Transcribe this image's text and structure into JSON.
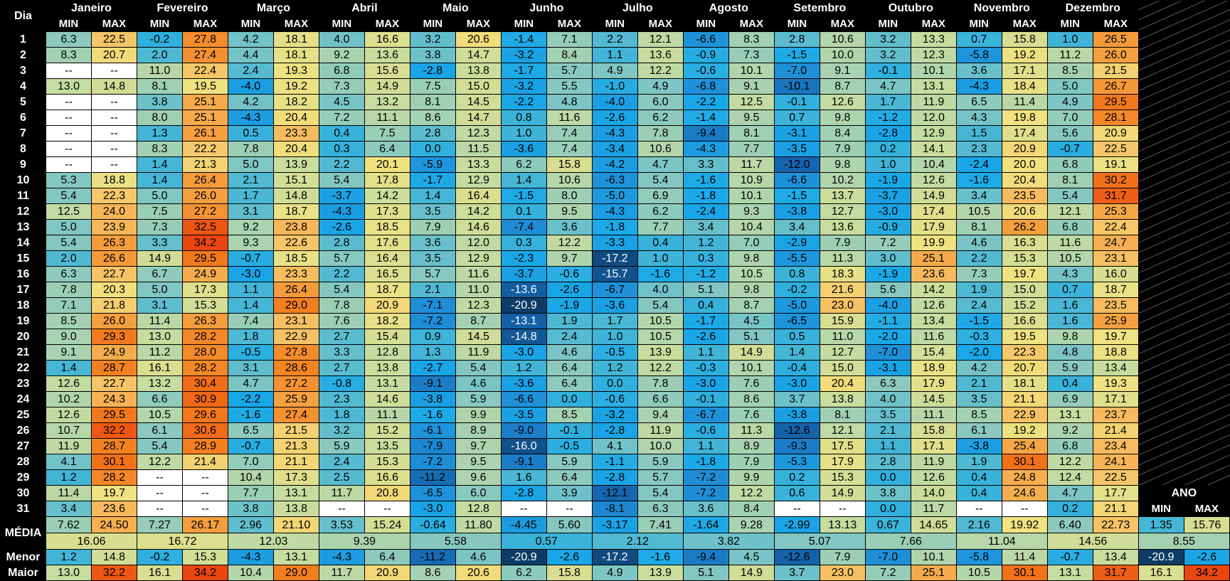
{
  "header": {
    "dia": "Dia",
    "min": "MIN",
    "max": "MAX",
    "ano": "ANO"
  },
  "months": [
    "Janeiro",
    "Fevereiro",
    "Março",
    "Abril",
    "Maio",
    "Junho",
    "Julho",
    "Agosto",
    "Setembro",
    "Outubro",
    "Novembro",
    "Dezembro"
  ],
  "rows": [
    {
      "day": "1",
      "values": [
        "6.3",
        "22.5",
        "-0.2",
        "27.8",
        "4.2",
        "18.1",
        "4.0",
        "16.6",
        "3.2",
        "20.6",
        "-1.4",
        "7.1",
        "2.2",
        "12.1",
        "-6.6",
        "8.3",
        "2.8",
        "10.6",
        "3.2",
        "13.3",
        "0.7",
        "15.8",
        "1.0",
        "26.5"
      ]
    },
    {
      "day": "2",
      "values": [
        "8.3",
        "20.7",
        "2.0",
        "27.4",
        "4.4",
        "18.1",
        "9.2",
        "13.6",
        "3.8",
        "14.7",
        "-3.2",
        "8.4",
        "1.1",
        "13.6",
        "-0.9",
        "7.3",
        "-1.5",
        "10.0",
        "3.2",
        "12.3",
        "-5.8",
        "19.2",
        "11.2",
        "26.0"
      ]
    },
    {
      "day": "3",
      "values": [
        "--",
        "--",
        "11.0",
        "22.4",
        "2.4",
        "19.3",
        "6.8",
        "15.6",
        "-2.8",
        "13.8",
        "-1.7",
        "5.7",
        "4.9",
        "12.2",
        "-0.6",
        "10.1",
        "-7.0",
        "9.1",
        "-0.1",
        "10.1",
        "3.6",
        "17.1",
        "8.5",
        "21.5"
      ]
    },
    {
      "day": "4",
      "values": [
        "13.0",
        "14.8",
        "8.1",
        "19.5",
        "-4.0",
        "19.2",
        "7.3",
        "14.9",
        "7.5",
        "15.0",
        "-3.2",
        "5.5",
        "-1.0",
        "4.9",
        "-6.8",
        "9.1",
        "-10.1",
        "8.7",
        "4.7",
        "13.1",
        "-4.3",
        "18.4",
        "5.0",
        "26.7"
      ]
    },
    {
      "day": "5",
      "values": [
        "--",
        "--",
        "3.8",
        "25.1",
        "4.2",
        "18.2",
        "4.5",
        "13.2",
        "8.1",
        "14.5",
        "-2.2",
        "4.8",
        "-4.0",
        "6.0",
        "-2.2",
        "12.5",
        "-0.1",
        "12.6",
        "1.7",
        "11.9",
        "6.5",
        "11.4",
        "4.9",
        "29.5"
      ]
    },
    {
      "day": "6",
      "values": [
        "--",
        "--",
        "8.0",
        "25.1",
        "-4.3",
        "20.4",
        "7.2",
        "11.1",
        "8.6",
        "14.7",
        "0.8",
        "11.6",
        "-2.6",
        "6.2",
        "-1.4",
        "9.5",
        "0.7",
        "9.8",
        "-1.2",
        "12.0",
        "4.3",
        "19.8",
        "7.0",
        "28.1"
      ]
    },
    {
      "day": "7",
      "values": [
        "--",
        "--",
        "1.3",
        "26.1",
        "0.5",
        "23.3",
        "0.4",
        "7.5",
        "2.8",
        "12.3",
        "1.0",
        "7.4",
        "-4.3",
        "7.8",
        "-9.4",
        "8.1",
        "-3.1",
        "8.4",
        "-2.8",
        "12.9",
        "1.5",
        "17.4",
        "5.6",
        "20.9"
      ]
    },
    {
      "day": "8",
      "values": [
        "--",
        "--",
        "8.3",
        "22.2",
        "7.8",
        "20.4",
        "0.3",
        "6.4",
        "0.0",
        "11.5",
        "-3.6",
        "7.4",
        "-3.4",
        "10.6",
        "-4.3",
        "7.7",
        "-3.5",
        "7.9",
        "0.2",
        "14.1",
        "2.3",
        "20.9",
        "-0.7",
        "22.5"
      ]
    },
    {
      "day": "9",
      "values": [
        "--",
        "--",
        "1.4",
        "21.3",
        "5.0",
        "13.9",
        "2.2",
        "20.1",
        "-5.9",
        "13.3",
        "6.2",
        "15.8",
        "-4.2",
        "4.7",
        "3.3",
        "11.7",
        "-12.0",
        "9.8",
        "1.0",
        "10.4",
        "-2.4",
        "20.0",
        "6.8",
        "19.1"
      ]
    },
    {
      "day": "10",
      "values": [
        "5.3",
        "18.8",
        "1.4",
        "26.4",
        "2.1",
        "15.1",
        "5.4",
        "17.8",
        "-1.7",
        "12.9",
        "1.4",
        "10.6",
        "-6.3",
        "5.4",
        "-1.6",
        "10.9",
        "-6.6",
        "10.2",
        "-1.9",
        "12.6",
        "-1.6",
        "20.4",
        "8.1",
        "30.2"
      ]
    },
    {
      "day": "11",
      "values": [
        "5.4",
        "22.3",
        "5.0",
        "26.0",
        "1.7",
        "14.8",
        "-3.7",
        "14.2",
        "1.4",
        "16.4",
        "-1.5",
        "8.0",
        "-5.0",
        "6.9",
        "-1.8",
        "10.1",
        "-1.5",
        "13.7",
        "-3.7",
        "14.9",
        "3.4",
        "23.5",
        "5.4",
        "31.7"
      ]
    },
    {
      "day": "12",
      "values": [
        "12.5",
        "24.0",
        "7.5",
        "27.2",
        "3.1",
        "18.7",
        "-4.3",
        "17.3",
        "3.5",
        "14.2",
        "0.1",
        "9.5",
        "-4.3",
        "6.2",
        "-2.4",
        "9.3",
        "-3.8",
        "12.7",
        "-3.0",
        "17.4",
        "10.5",
        "20.6",
        "12.1",
        "25.3"
      ]
    },
    {
      "day": "13",
      "values": [
        "5.0",
        "23.9",
        "7.3",
        "32.5",
        "9.2",
        "23.8",
        "-2.6",
        "18.5",
        "7.9",
        "14.6",
        "-7.4",
        "3.6",
        "-1.8",
        "7.7",
        "3.4",
        "10.4",
        "3.4",
        "13.6",
        "-0.9",
        "17.9",
        "8.1",
        "26.2",
        "6.8",
        "22.4"
      ]
    },
    {
      "day": "14",
      "values": [
        "5.4",
        "26.3",
        "3.3",
        "34.2",
        "9.3",
        "22.6",
        "2.8",
        "17.6",
        "3.6",
        "12.0",
        "0.3",
        "12.2",
        "-3.3",
        "0.4",
        "1.2",
        "7.0",
        "-2.9",
        "7.9",
        "7.2",
        "19.9",
        "4.6",
        "16.3",
        "11.6",
        "24.7"
      ]
    },
    {
      "day": "15",
      "values": [
        "2.0",
        "26.6",
        "14.9",
        "29.5",
        "-0.7",
        "18.5",
        "5.7",
        "16.4",
        "3.5",
        "12.9",
        "-2.3",
        "9.7",
        "-17.2",
        "1.0",
        "0.3",
        "9.8",
        "-5.5",
        "11.3",
        "3.0",
        "25.1",
        "2.2",
        "15.3",
        "10.5",
        "23.1"
      ]
    },
    {
      "day": "16",
      "values": [
        "6.3",
        "22.7",
        "6.7",
        "24.9",
        "-3.0",
        "23.3",
        "2.2",
        "16.5",
        "5.7",
        "11.6",
        "-3.7",
        "-0.6",
        "-15.7",
        "-1.6",
        "-1.2",
        "10.5",
        "0.8",
        "18.3",
        "-1.9",
        "23.6",
        "7.3",
        "19.7",
        "4.3",
        "16.0"
      ]
    },
    {
      "day": "17",
      "values": [
        "7.8",
        "20.3",
        "5.0",
        "17.3",
        "1.1",
        "26.4",
        "5.4",
        "18.7",
        "2.1",
        "11.0",
        "-13.6",
        "-2.6",
        "-6.7",
        "4.0",
        "5.1",
        "9.8",
        "-0.2",
        "21.6",
        "5.6",
        "14.2",
        "1.9",
        "15.0",
        "0.7",
        "18.7"
      ]
    },
    {
      "day": "18",
      "values": [
        "7.1",
        "21.8",
        "3.1",
        "15.3",
        "1.4",
        "29.0",
        "7.8",
        "20.9",
        "-7.1",
        "12.3",
        "-20.9",
        "-1.9",
        "-3.6",
        "5.4",
        "0.4",
        "8.7",
        "-5.0",
        "23.0",
        "-4.0",
        "12.6",
        "2.4",
        "15.2",
        "1.6",
        "23.5"
      ]
    },
    {
      "day": "19",
      "values": [
        "8.5",
        "26.0",
        "11.4",
        "26.3",
        "7.4",
        "23.1",
        "7.6",
        "18.2",
        "-7.2",
        "8.7",
        "-13.1",
        "1.9",
        "1.7",
        "10.5",
        "-1.7",
        "4.5",
        "-6.5",
        "15.9",
        "-1.1",
        "13.4",
        "-1.5",
        "16.6",
        "1.6",
        "25.9"
      ]
    },
    {
      "day": "20",
      "values": [
        "9.0",
        "29.3",
        "13.0",
        "28.2",
        "1.8",
        "22.9",
        "2.7",
        "15.4",
        "0.9",
        "14.5",
        "-14.8",
        "2.4",
        "1.0",
        "10.5",
        "-2.6",
        "5.1",
        "0.5",
        "11.0",
        "-2.0",
        "11.6",
        "-0.3",
        "19.5",
        "9.8",
        "19.7"
      ]
    },
    {
      "day": "21",
      "values": [
        "9.1",
        "24.9",
        "11.2",
        "28.0",
        "-0.5",
        "27.8",
        "3.3",
        "12.8",
        "1.3",
        "11.9",
        "-3.0",
        "4.6",
        "-0.5",
        "13.9",
        "1.1",
        "14.9",
        "1.4",
        "12.7",
        "-7.0",
        "15.4",
        "-2.0",
        "22.3",
        "4.8",
        "18.8"
      ]
    },
    {
      "day": "22",
      "values": [
        "1.4",
        "28.7",
        "16.1",
        "28.2",
        "3.1",
        "28.6",
        "2.7",
        "13.8",
        "-2.7",
        "5.4",
        "1.2",
        "6.4",
        "1.2",
        "12.2",
        "-0.3",
        "10.1",
        "-0.4",
        "15.0",
        "-3.1",
        "18.9",
        "4.2",
        "20.7",
        "5.9",
        "13.4"
      ]
    },
    {
      "day": "23",
      "values": [
        "12.6",
        "22.7",
        "13.2",
        "30.4",
        "4.7",
        "27.2",
        "-0.8",
        "13.1",
        "-9.1",
        "4.6",
        "-3.6",
        "6.4",
        "0.0",
        "7.8",
        "-3.0",
        "7.6",
        "-3.0",
        "20.4",
        "6.3",
        "17.9",
        "2.1",
        "18.1",
        "0.4",
        "19.3"
      ]
    },
    {
      "day": "24",
      "values": [
        "10.2",
        "24.3",
        "6.6",
        "30.9",
        "-2.2",
        "25.9",
        "2.3",
        "14.6",
        "-3.8",
        "5.9",
        "-6.6",
        "0.0",
        "-0.6",
        "6.6",
        "-0.1",
        "8.6",
        "3.7",
        "13.8",
        "4.0",
        "14.5",
        "3.5",
        "21.1",
        "6.9",
        "17.1"
      ]
    },
    {
      "day": "25",
      "values": [
        "12.6",
        "29.5",
        "10.5",
        "29.6",
        "-1.6",
        "27.4",
        "1.8",
        "11.1",
        "-1.6",
        "9.9",
        "-3.5",
        "8.5",
        "-3.2",
        "9.4",
        "-6.7",
        "7.6",
        "-3.8",
        "8.1",
        "3.5",
        "11.1",
        "8.5",
        "22.9",
        "13.1",
        "23.7"
      ]
    },
    {
      "day": "26",
      "values": [
        "10.7",
        "32.2",
        "6.1",
        "30.6",
        "6.5",
        "21.5",
        "3.2",
        "15.2",
        "-6.1",
        "8.9",
        "-9.0",
        "-0.1",
        "-2.8",
        "11.9",
        "-0.6",
        "11.3",
        "-12.6",
        "12.1",
        "2.1",
        "15.8",
        "6.1",
        "19.2",
        "9.2",
        "21.4"
      ]
    },
    {
      "day": "27",
      "values": [
        "11.9",
        "28.7",
        "5.4",
        "28.9",
        "-0.7",
        "21.3",
        "5.9",
        "13.5",
        "-7.9",
        "9.7",
        "-16.0",
        "-0.5",
        "4.1",
        "10.0",
        "1.1",
        "8.9",
        "-9.3",
        "17.5",
        "1.1",
        "17.1",
        "-3.8",
        "25.4",
        "6.8",
        "23.4"
      ]
    },
    {
      "day": "28",
      "values": [
        "4.1",
        "30.1",
        "12.2",
        "21.4",
        "7.0",
        "21.1",
        "2.4",
        "15.3",
        "-7.2",
        "9.5",
        "-9.1",
        "5.9",
        "-1.1",
        "5.9",
        "-1.8",
        "7.9",
        "-5.3",
        "17.9",
        "2.8",
        "11.9",
        "1.9",
        "30.1",
        "12.2",
        "24.1"
      ]
    },
    {
      "day": "29",
      "values": [
        "1.2",
        "28.2",
        "--",
        "--",
        "10.4",
        "17.3",
        "2.5",
        "16.6",
        "-11.2",
        "9.6",
        "1.6",
        "6.4",
        "-2.8",
        "5.7",
        "-7.2",
        "9.9",
        "0.2",
        "15.3",
        "0.0",
        "12.6",
        "0.4",
        "24.8",
        "12.4",
        "22.5"
      ]
    },
    {
      "day": "30",
      "values": [
        "11.4",
        "19.7",
        "--",
        "--",
        "7.7",
        "13.1",
        "11.7",
        "20.8",
        "-6.5",
        "6.0",
        "-2.8",
        "3.9",
        "-12.1",
        "5.4",
        "-7.2",
        "12.2",
        "0.6",
        "14.9",
        "3.8",
        "14.0",
        "0.4",
        "24.6",
        "4.7",
        "17.7"
      ]
    },
    {
      "day": "31",
      "values": [
        "3.4",
        "23.6",
        "--",
        "--",
        "3.8",
        "13.8",
        "--",
        "--",
        "-3.0",
        "12.8",
        "--",
        "--",
        "-8.1",
        "6.3",
        "3.6",
        "8.4",
        "--",
        "--",
        "0.0",
        "11.7",
        "--",
        "--",
        "0.2",
        "21.1"
      ]
    }
  ],
  "media": {
    "label": "MÉDIA",
    "values": [
      "7.62",
      "24.50",
      "7.27",
      "26.17",
      "2.96",
      "21.10",
      "3.53",
      "15.24",
      "-0.64",
      "11.80",
      "-4.45",
      "5.60",
      "-3.17",
      "7.41",
      "-1.64",
      "9.28",
      "-2.99",
      "13.13",
      "0.67",
      "14.65",
      "2.16",
      "19.92",
      "6.40",
      "22.73"
    ],
    "means": [
      "16.06",
      "16.72",
      "12.03",
      "9.39",
      "5.58",
      "0.57",
      "2.12",
      "3.82",
      "5.07",
      "7.66",
      "11.04",
      "14.56"
    ],
    "ano_values": [
      "1.35",
      "15.76"
    ],
    "ano_mean": "8.55"
  },
  "menor": {
    "label": "Menor",
    "values": [
      "1.2",
      "14.8",
      "-0.2",
      "15.3",
      "-4.3",
      "13.1",
      "-4.3",
      "6.4",
      "-11.2",
      "4.6",
      "-20.9",
      "-2.6",
      "-17.2",
      "-1.6",
      "-9.4",
      "4.5",
      "-12.6",
      "7.9",
      "-7.0",
      "10.1",
      "-5.8",
      "11.4",
      "-0.7",
      "13.4"
    ],
    "ano_values": [
      "-20.9",
      "-2.6"
    ]
  },
  "maior": {
    "label": "Maior",
    "values": [
      "13.0",
      "32.2",
      "16.1",
      "34.2",
      "10.4",
      "29.0",
      "11.7",
      "20.9",
      "8.6",
      "20.6",
      "6.2",
      "15.8",
      "4.9",
      "13.9",
      "5.1",
      "14.9",
      "3.7",
      "23.0",
      "7.2",
      "25.1",
      "10.5",
      "30.1",
      "13.1",
      "31.7"
    ],
    "ano_values": [
      "16.1",
      "34.2"
    ]
  },
  "color_scale": [
    {
      "t": -20,
      "hex": "#0d3d66"
    },
    {
      "t": -12,
      "hex": "#1565b0"
    },
    {
      "t": -7,
      "hex": "#1f8fd8"
    },
    {
      "t": -2,
      "hex": "#19a8e8"
    },
    {
      "t": 1,
      "hex": "#3fb4d8"
    },
    {
      "t": 5,
      "hex": "#80c6c3"
    },
    {
      "t": 9,
      "hex": "#a8d2b0"
    },
    {
      "t": 13,
      "hex": "#c6dca0"
    },
    {
      "t": 17,
      "hex": "#dedf8c"
    },
    {
      "t": 20,
      "hex": "#f1e27f"
    },
    {
      "t": 23,
      "hex": "#f6c064"
    },
    {
      "t": 26,
      "hex": "#f5a040"
    },
    {
      "t": 29,
      "hex": "#f37e1f"
    },
    {
      "t": 32,
      "hex": "#ee5a14"
    },
    {
      "t": 34.5,
      "hex": "#e8430f"
    }
  ],
  "na_color": "#ffffff"
}
